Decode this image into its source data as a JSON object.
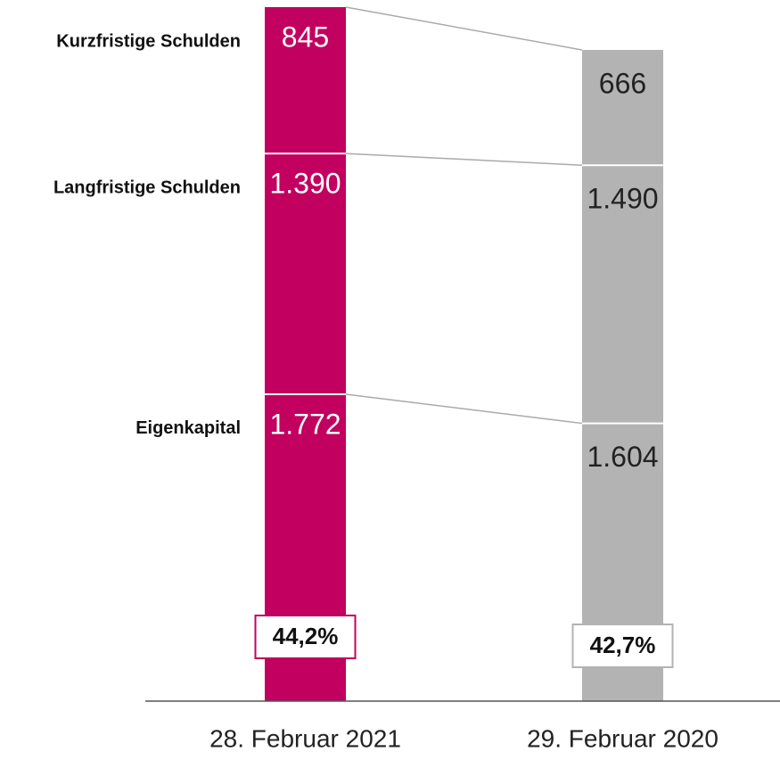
{
  "chart_data": {
    "type": "stacked_bar",
    "categories": [
      "28. Februar 2021",
      "29. Februar 2020"
    ],
    "colors": [
      "#c2005f",
      "#b3b3b3"
    ],
    "series": [
      {
        "name": "Eigenkapital",
        "values": [
          1772,
          1604
        ],
        "value_labels": [
          "1.772",
          "1.604"
        ]
      },
      {
        "name": "Langfristige Schulden",
        "values": [
          1390,
          1490
        ],
        "value_labels": [
          "1.390",
          "1.490"
        ]
      },
      {
        "name": "Kurzfristige Schulden",
        "values": [
          845,
          666
        ],
        "value_labels": [
          "845",
          "666"
        ]
      }
    ],
    "equity_ratio": {
      "values": [
        44.2,
        42.7
      ],
      "value_labels": [
        "44,2%",
        "42,7%"
      ]
    }
  }
}
